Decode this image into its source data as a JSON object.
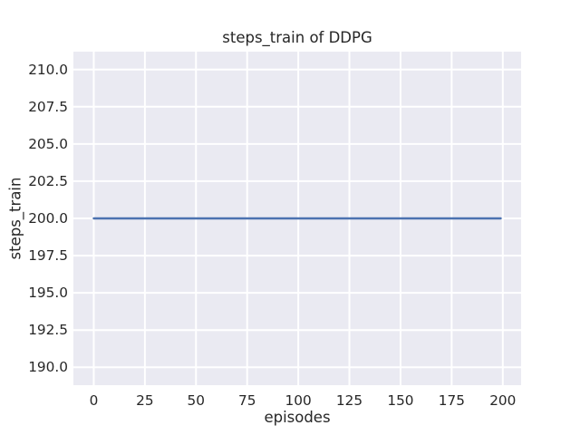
{
  "chart_data": {
    "type": "line",
    "title": "steps_train of DDPG",
    "xlabel": "episodes",
    "ylabel": "steps_train",
    "xlim": [
      -9.95,
      208.95
    ],
    "ylim": [
      188.8,
      211.2
    ],
    "xticks": [
      0,
      25,
      50,
      75,
      100,
      125,
      150,
      175,
      200
    ],
    "xtick_labels": [
      "0",
      "25",
      "50",
      "75",
      "100",
      "125",
      "150",
      "175",
      "200"
    ],
    "yticks": [
      190.0,
      192.5,
      195.0,
      197.5,
      200.0,
      202.5,
      205.0,
      207.5,
      210.0
    ],
    "ytick_labels": [
      "190.0",
      "192.5",
      "195.0",
      "197.5",
      "200.0",
      "202.5",
      "205.0",
      "207.5",
      "210.0"
    ],
    "grid": true,
    "legend": false,
    "series": [
      {
        "name": "steps_train",
        "color": "#4c72b0",
        "x": [
          0,
          199
        ],
        "y": [
          200,
          200
        ]
      }
    ],
    "colors": {
      "figure_bg": "#ffffff",
      "axes_bg": "#eaeaf2",
      "grid": "#ffffff",
      "text": "#262626"
    }
  }
}
